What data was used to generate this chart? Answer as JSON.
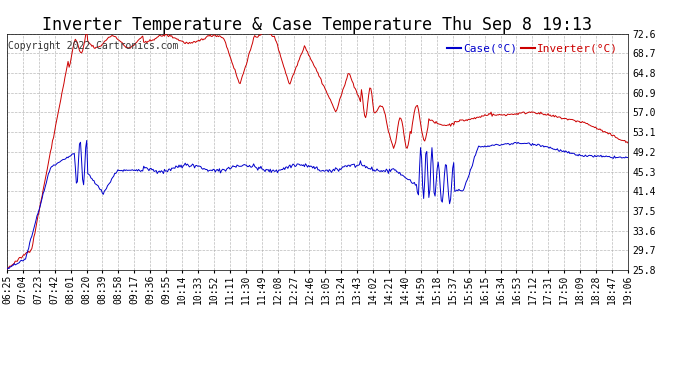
{
  "title": "Inverter Temperature & Case Temperature Thu Sep 8 19:13",
  "copyright": "Copyright 2022 Cartronics.com",
  "legend_case": "Case(°C)",
  "legend_inverter": "Inverter(°C)",
  "yticks": [
    25.8,
    29.7,
    33.6,
    37.5,
    41.4,
    45.3,
    49.2,
    53.1,
    57.0,
    60.9,
    64.8,
    68.7,
    72.6
  ],
  "xtick_labels": [
    "06:25",
    "07:04",
    "07:23",
    "07:42",
    "08:01",
    "08:20",
    "08:39",
    "08:58",
    "09:17",
    "09:36",
    "09:55",
    "10:14",
    "10:33",
    "10:52",
    "11:11",
    "11:30",
    "11:49",
    "12:08",
    "12:27",
    "12:46",
    "13:05",
    "13:24",
    "13:43",
    "14:02",
    "14:21",
    "14:40",
    "14:59",
    "15:18",
    "15:37",
    "15:56",
    "16:15",
    "16:34",
    "16:53",
    "17:12",
    "17:31",
    "17:50",
    "18:09",
    "18:28",
    "18:47",
    "19:06"
  ],
  "bg_color": "#ffffff",
  "grid_color": "#aaaaaa",
  "inverter_color": "#cc0000",
  "case_color": "#0000cc",
  "title_fontsize": 12,
  "tick_fontsize": 7,
  "legend_fontsize": 8,
  "copyright_fontsize": 7
}
